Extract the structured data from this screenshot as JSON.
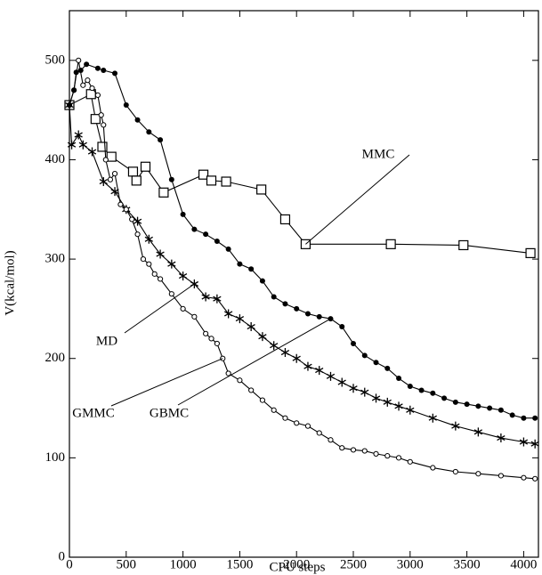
{
  "chart_data": {
    "type": "line",
    "xlabel": "CPU steps",
    "ylabel": "V(kcal/mol)",
    "xlim": [
      0,
      4130
    ],
    "ylim": [
      0,
      550
    ],
    "xticks": [
      0,
      500,
      1000,
      1500,
      2000,
      2500,
      3000,
      3500,
      4000
    ],
    "yticks": [
      0,
      100,
      200,
      300,
      400,
      500
    ],
    "series": [
      {
        "name": "MMC",
        "color": "#000000",
        "marker": "square",
        "x": [
          0,
          190,
          230,
          290,
          370,
          560,
          590,
          670,
          830,
          1180,
          1250,
          1380,
          1690,
          1900,
          2080,
          2830,
          3470,
          4060
        ],
        "values": [
          455,
          466,
          441,
          413,
          403,
          388,
          379,
          393,
          367,
          385,
          379,
          378,
          370,
          340,
          315,
          315,
          314,
          306
        ]
      },
      {
        "name": "MD",
        "color": "#000000",
        "marker": "star",
        "x": [
          0,
          20,
          80,
          120,
          200,
          300,
          400,
          500,
          600,
          700,
          800,
          900,
          1000,
          1100,
          1200,
          1300,
          1400,
          1500,
          1600,
          1700,
          1800,
          1900,
          2000,
          2100,
          2200,
          2300,
          2400,
          2500,
          2600,
          2700,
          2800,
          2900,
          3000,
          3200,
          3400,
          3600,
          3800,
          4000,
          4100
        ],
        "values": [
          455,
          415,
          425,
          415,
          408,
          378,
          368,
          350,
          338,
          320,
          305,
          295,
          283,
          275,
          262,
          260,
          245,
          240,
          232,
          222,
          213,
          206,
          200,
          192,
          188,
          182,
          176,
          170,
          166,
          160,
          156,
          152,
          148,
          140,
          132,
          126,
          120,
          116,
          114
        ]
      },
      {
        "name": "GMMC",
        "color": "#000000",
        "marker": "circle-open",
        "x": [
          0,
          40,
          80,
          120,
          160,
          200,
          250,
          280,
          300,
          320,
          360,
          400,
          450,
          500,
          550,
          600,
          650,
          700,
          750,
          800,
          900,
          1000,
          1100,
          1200,
          1250,
          1300,
          1350,
          1400,
          1500,
          1600,
          1700,
          1800,
          1900,
          2000,
          2100,
          2200,
          2300,
          2400,
          2500,
          2600,
          2700,
          2800,
          2900,
          3000,
          3200,
          3400,
          3600,
          3800,
          4000,
          4100
        ],
        "values": [
          455,
          470,
          500,
          475,
          480,
          472,
          465,
          445,
          435,
          400,
          380,
          386,
          355,
          350,
          340,
          325,
          300,
          295,
          285,
          280,
          265,
          250,
          242,
          225,
          220,
          215,
          200,
          185,
          178,
          168,
          158,
          148,
          140,
          135,
          132,
          125,
          118,
          110,
          108,
          107,
          104,
          102,
          100,
          96,
          90,
          86,
          84,
          82,
          80,
          79
        ]
      },
      {
        "name": "GBMC",
        "color": "#000000",
        "marker": "circle-filled",
        "x": [
          0,
          40,
          60,
          100,
          150,
          250,
          300,
          400,
          500,
          600,
          700,
          800,
          900,
          1000,
          1100,
          1200,
          1300,
          1400,
          1500,
          1600,
          1700,
          1800,
          1900,
          2000,
          2100,
          2200,
          2300,
          2400,
          2500,
          2600,
          2700,
          2800,
          2900,
          3000,
          3100,
          3200,
          3300,
          3400,
          3500,
          3600,
          3700,
          3800,
          3900,
          4000,
          4100
        ],
        "values": [
          455,
          470,
          488,
          490,
          496,
          492,
          490,
          487,
          455,
          440,
          428,
          420,
          380,
          345,
          330,
          325,
          318,
          310,
          295,
          290,
          278,
          262,
          255,
          250,
          245,
          242,
          240,
          232,
          215,
          203,
          196,
          190,
          180,
          172,
          168,
          165,
          160,
          156,
          154,
          152,
          150,
          148,
          143,
          140,
          140
        ]
      }
    ]
  }
}
